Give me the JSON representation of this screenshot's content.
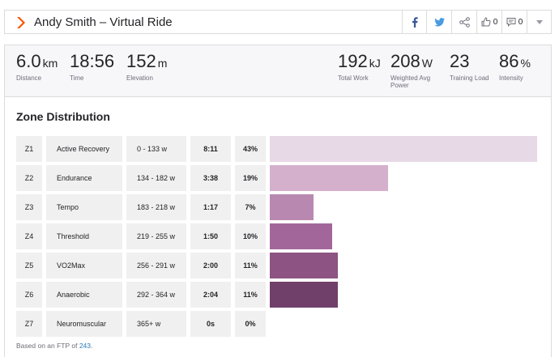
{
  "header": {
    "title": "Andy Smith – Virtual Ride",
    "kudos_count": "0",
    "comment_count": "0"
  },
  "stats_left": [
    {
      "value": "6.0",
      "unit": "km",
      "label": "Distance"
    },
    {
      "value": "18:56",
      "unit": "",
      "label": "Time"
    },
    {
      "value": "152",
      "unit": "m",
      "label": "Elevation"
    }
  ],
  "stats_right": [
    {
      "value": "192",
      "unit": "kJ",
      "label": "Total Work"
    },
    {
      "value": "208",
      "unit": "W",
      "label": "Weighted Avg Power"
    },
    {
      "value": "23",
      "unit": "",
      "label": "Training Load"
    },
    {
      "value": "86",
      "unit": "%",
      "label": "Intensity"
    }
  ],
  "zones": {
    "title": "Zone Distribution",
    "rows": [
      {
        "zone": "Z1",
        "name": "Active Recovery",
        "range": "0 - 133 w",
        "time": "8:11",
        "pct": "43%",
        "share": 0.43,
        "color": "#e8d9e6"
      },
      {
        "zone": "Z2",
        "name": "Endurance",
        "range": "134 - 182 w",
        "time": "3:38",
        "pct": "19%",
        "share": 0.19,
        "color": "#d4b0cd"
      },
      {
        "zone": "Z3",
        "name": "Tempo",
        "range": "183 - 218 w",
        "time": "1:17",
        "pct": "7%",
        "share": 0.07,
        "color": "#b988b1"
      },
      {
        "zone": "Z4",
        "name": "Threshold",
        "range": "219 - 255 w",
        "time": "1:50",
        "pct": "10%",
        "share": 0.1,
        "color": "#a2669b"
      },
      {
        "zone": "Z5",
        "name": "VO2Max",
        "range": "256 - 291 w",
        "time": "2:00",
        "pct": "11%",
        "share": 0.11,
        "color": "#8c5383"
      },
      {
        "zone": "Z6",
        "name": "Anaerobic",
        "range": "292 - 364 w",
        "time": "2:04",
        "pct": "11%",
        "share": 0.11,
        "color": "#70406a"
      },
      {
        "zone": "Z7",
        "name": "Neuromuscular",
        "range": "365+ w",
        "time": "0s",
        "pct": "0%",
        "share": 0.0,
        "color": "#5a2f55"
      }
    ]
  },
  "footnote": {
    "prefix": "Based on an FTP of ",
    "ftp": "243",
    "suffix": "."
  },
  "colors": {
    "brand_orange": "#fc5200",
    "facebook_blue": "#3b5998",
    "twitter_blue": "#4a9be0",
    "link_blue": "#2a7bb8"
  },
  "icons": [
    "strava-chevron-icon",
    "facebook-icon",
    "twitter-icon",
    "share-icon",
    "kudos-thumb-icon",
    "comment-icon",
    "dropdown-caret-icon"
  ]
}
